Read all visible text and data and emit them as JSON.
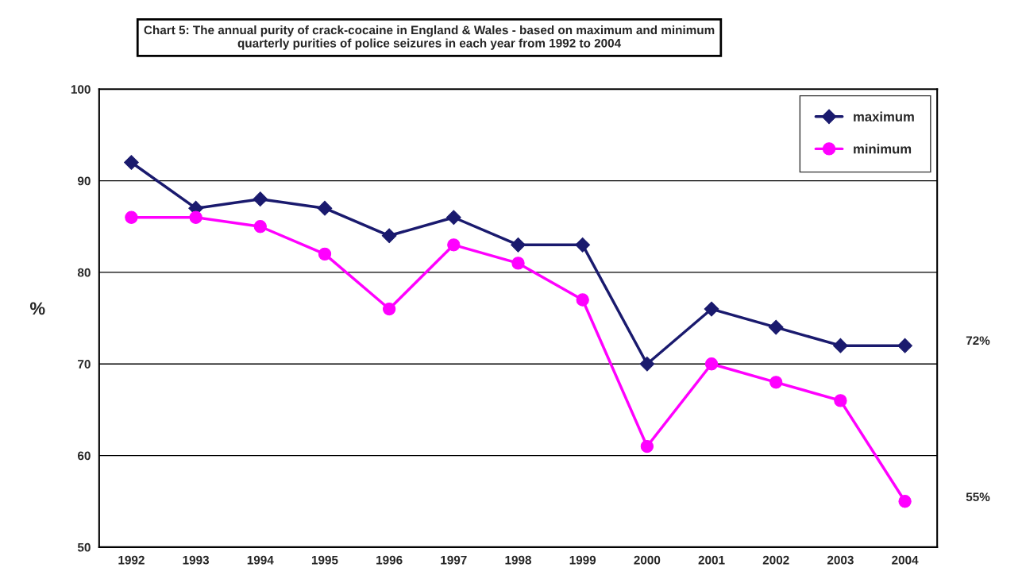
{
  "chart_data": {
    "type": "line",
    "title": "Chart 5: The annual purity of crack-cocaine in England & Wales - based on maximum and minimum\nquarterly purities of police seizures in each year from 1992 to 2004",
    "ylabel": "%",
    "categories": [
      "1992",
      "1993",
      "1994",
      "1995",
      "1996",
      "1997",
      "1998",
      "1999",
      "2000",
      "2001",
      "2002",
      "2003",
      "2004"
    ],
    "series": [
      {
        "name": "maximum",
        "color": "#1a1a6e",
        "marker": "diamond",
        "values": [
          92,
          87,
          88,
          87,
          84,
          86,
          83,
          83,
          70,
          76,
          74,
          72,
          72
        ]
      },
      {
        "name": "minimum",
        "color": "#ff00ff",
        "marker": "circle",
        "values": [
          86,
          86,
          85,
          82,
          76,
          83,
          81,
          77,
          61,
          70,
          68,
          66,
          55
        ]
      }
    ],
    "annotations": [
      "72%",
      "55%"
    ],
    "ylim": [
      50,
      100
    ],
    "yticks": [
      50,
      60,
      70,
      80,
      90,
      100
    ],
    "grid": "y",
    "legend": "top right",
    "line_style": "solid"
  }
}
